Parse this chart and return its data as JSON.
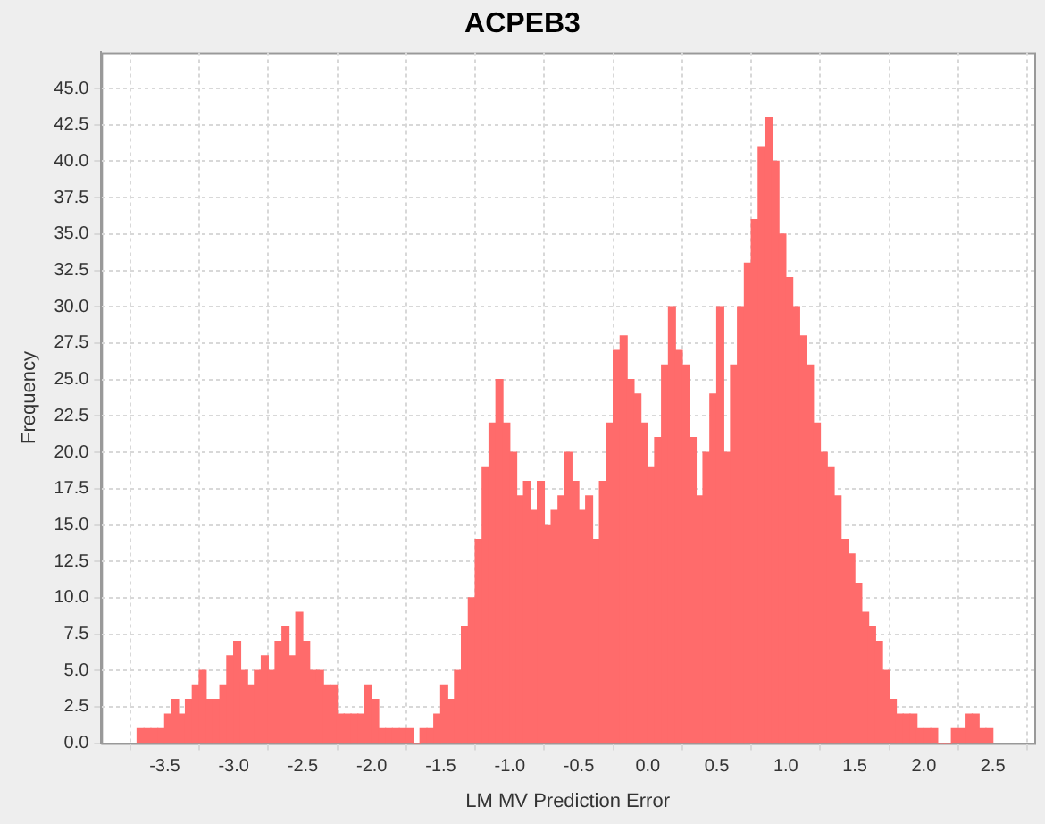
{
  "chart_data": {
    "type": "histogram",
    "title": "ACPEB3",
    "xlabel": "LM MV Prediction Error",
    "ylabel": "Frequency",
    "bins": [
      -3.7,
      -3.65,
      -3.6,
      -3.55,
      -3.5,
      -3.45,
      -3.4,
      -3.35,
      -3.3,
      -3.25,
      -3.2,
      -3.15,
      -3.1,
      -3.05,
      -3.0,
      -2.95,
      -2.9,
      -2.85,
      -2.8,
      -2.75,
      -2.7,
      -2.65,
      -2.6,
      -2.55,
      -2.5,
      -2.45,
      -2.4,
      -2.35,
      -2.3,
      -2.25,
      -2.2,
      -2.15,
      -2.1,
      -2.05,
      -2.0,
      -1.95,
      -1.9,
      -1.85,
      -1.8,
      -1.75,
      -1.7,
      -1.65,
      -1.6,
      -1.55,
      -1.5,
      -1.45,
      -1.4,
      -1.35,
      -1.3,
      -1.25,
      -1.2,
      -1.15,
      -1.1,
      -1.05,
      -1.0,
      -0.95,
      -0.9,
      -0.85,
      -0.8,
      -0.75,
      -0.7,
      -0.65,
      -0.6,
      -0.55,
      -0.5,
      -0.45,
      -0.4,
      -0.35,
      -0.3,
      -0.25,
      -0.2,
      -0.15,
      -0.1,
      -0.05,
      0.0,
      0.05,
      0.1,
      0.15,
      0.2,
      0.25,
      0.3,
      0.35,
      0.4,
      0.45,
      0.5,
      0.55,
      0.6,
      0.65,
      0.7,
      0.75,
      0.8,
      0.85,
      0.9,
      0.95,
      1.0,
      1.05,
      1.1,
      1.15,
      1.2,
      1.25,
      1.3,
      1.35,
      1.4,
      1.45,
      1.5,
      1.55,
      1.6,
      1.65,
      1.7,
      1.75,
      1.8,
      1.85,
      1.9,
      1.95,
      2.0,
      2.05,
      2.1,
      2.15,
      2.2,
      2.25,
      2.3,
      2.35,
      2.4,
      2.45,
      2.5
    ],
    "values": [
      1,
      1,
      1,
      1,
      2,
      3,
      2,
      3,
      4,
      5,
      3,
      3,
      4,
      6,
      7,
      5,
      4,
      5,
      6,
      5,
      7,
      8,
      6,
      9,
      7,
      5,
      5,
      4,
      4,
      2,
      2,
      2,
      2,
      4,
      3,
      1,
      1,
      1,
      1,
      1,
      0,
      1,
      1,
      2,
      4,
      3,
      5,
      8,
      10,
      14,
      19,
      22,
      25,
      22,
      20,
      17,
      18,
      16,
      18,
      15,
      16,
      17,
      20,
      18,
      16,
      17,
      14,
      18,
      22,
      27,
      28,
      25,
      24,
      22,
      19,
      21,
      26,
      30,
      27,
      26,
      21,
      17,
      20,
      24,
      30,
      20,
      26,
      30,
      33,
      36,
      41,
      43,
      40,
      35,
      32,
      30,
      28,
      26,
      22,
      20,
      19,
      17,
      14,
      13,
      11,
      9,
      8,
      7,
      5,
      3,
      2,
      2,
      2,
      1,
      1,
      1,
      0,
      0,
      1,
      1,
      2,
      2,
      1,
      1
    ],
    "color": "#ff6b6b",
    "xlim": [
      -3.96,
      2.8
    ],
    "xticks": [
      -3.5,
      {
        "value": -3,
        "label": "-3.0"
      },
      -2.5,
      {
        "value": -2,
        "label": "-2.0"
      },
      -1.5,
      {
        "value": -1,
        "label": "-1.0"
      },
      -0.5,
      {
        "value": 0,
        "label": "0.0"
      },
      0.5,
      {
        "value": 1,
        "label": "1.0"
      },
      1.5,
      {
        "value": 2,
        "label": "2.0"
      },
      2.5
    ],
    "ylim": [
      0,
      47.5
    ],
    "yticks": [
      {
        "value": 0,
        "label": "0.0"
      },
      2.5,
      {
        "value": 5,
        "label": "5.0"
      },
      7.5,
      {
        "value": 10,
        "label": "10.0"
      },
      12.5,
      {
        "value": 15,
        "label": "15.0"
      },
      17.5,
      {
        "value": 20,
        "label": "20.0"
      },
      22.5,
      {
        "value": 25,
        "label": "25.0"
      },
      27.5,
      {
        "value": 30,
        "label": "30.0"
      },
      32.5,
      {
        "value": 35,
        "label": "35.0"
      },
      37.5,
      {
        "value": 40,
        "label": "40.0"
      },
      42.5,
      {
        "value": 45,
        "label": "45.0"
      }
    ],
    "grid": true
  }
}
